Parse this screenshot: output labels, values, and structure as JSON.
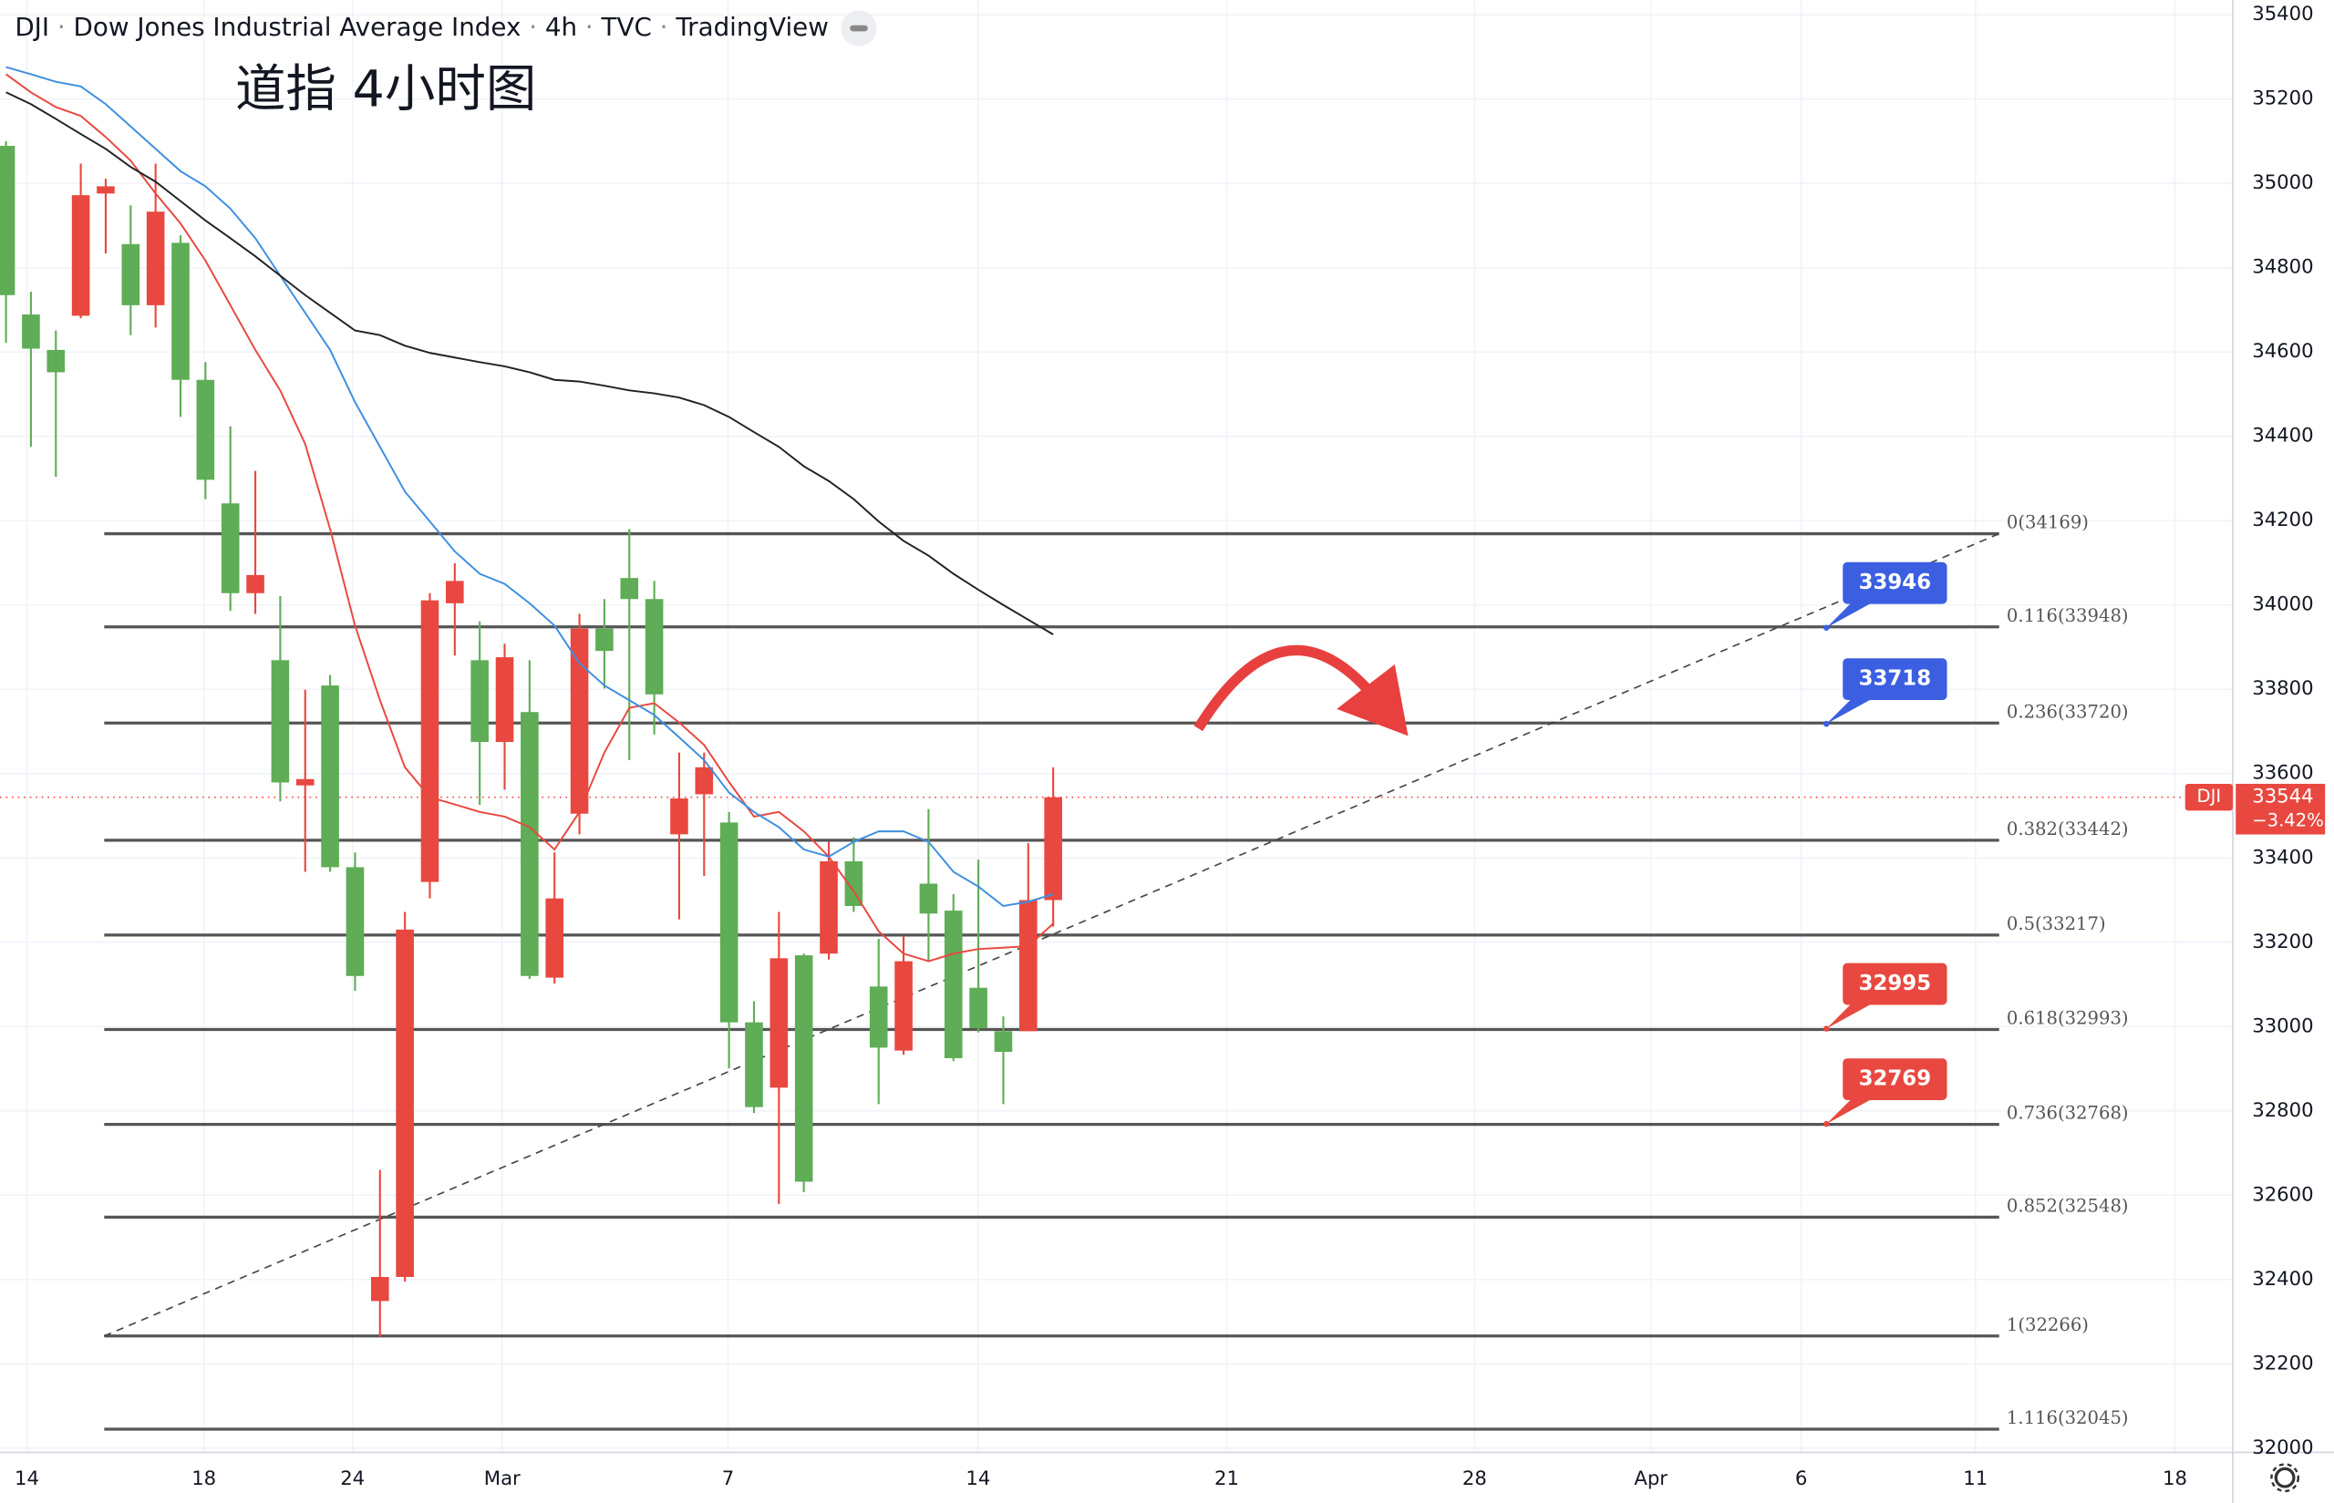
{
  "chart_data": {
    "type": "candlestick",
    "symbol": "DJI",
    "name": "Dow Jones Industrial Average Index",
    "interval": "4h",
    "exchange": "TVC",
    "source": "TradingView",
    "title": "道指 4小时图",
    "up_color": "#e8483f",
    "down_color": "#5fad56",
    "xlim": [
      -0.24,
      89.31
    ],
    "ylim": [
      31990,
      35435
    ],
    "xticks": [
      {
        "value": 0.84,
        "label": "14"
      },
      {
        "value": 7.94,
        "label": "18"
      },
      {
        "value": 13.9,
        "label": "24"
      },
      {
        "value": 19.9,
        "label": "Mar"
      },
      {
        "value": 28.96,
        "label": "7"
      },
      {
        "value": 38.99,
        "label": "14"
      },
      {
        "value": 48.96,
        "label": "21"
      },
      {
        "value": 58.9,
        "label": "28"
      },
      {
        "value": 65.97,
        "label": "Apr"
      },
      {
        "value": 72.0,
        "label": "6"
      },
      {
        "value": 78.99,
        "label": "11"
      },
      {
        "value": 86.99,
        "label": "18"
      }
    ],
    "yticks": [
      32000,
      32200,
      32400,
      32600,
      32800,
      33000,
      33200,
      33400,
      33600,
      33800,
      34000,
      34200,
      34400,
      34600,
      34800,
      35000,
      35200,
      35400
    ],
    "grid": true,
    "open": [
      35089,
      34689,
      34605,
      34686,
      34976,
      34856,
      34711,
      34859,
      34534,
      34241,
      34028,
      33869,
      33572,
      33809,
      33378,
      32349,
      32406,
      33343,
      34004,
      33869,
      33675,
      33746,
      33116,
      33505,
      33944,
      34064,
      34014,
      33456,
      33551,
      33484,
      33010,
      32855,
      33169,
      33173,
      33392,
      33095,
      32943,
      33339,
      33275,
      33092,
      32989,
      32989,
      33300
    ],
    "high": [
      35100,
      34743,
      34651,
      35047,
      35011,
      34948,
      35047,
      34877,
      34576,
      34424,
      34318,
      34021,
      33799,
      33834,
      33413,
      32660,
      33272,
      34028,
      34099,
      33961,
      33908,
      33869,
      33413,
      33979,
      34014,
      34180,
      34057,
      33650,
      33650,
      33509,
      33060,
      33272,
      33173,
      33438,
      33449,
      33208,
      33215,
      33516,
      33314,
      33396,
      33024,
      33435,
      33615
    ],
    "low": [
      34622,
      34375,
      34304,
      34680,
      34834,
      34640,
      34658,
      34446,
      34251,
      33986,
      33979,
      33534,
      33367,
      33367,
      33085,
      32264,
      32395,
      33304,
      33880,
      33526,
      33562,
      33113,
      33102,
      33456,
      33802,
      33632,
      33693,
      33254,
      33357,
      32901,
      32795,
      32579,
      32607,
      33159,
      33272,
      32816,
      32933,
      33155,
      32918,
      32986,
      32816,
      32989,
      33237
    ],
    "close": [
      34735,
      34608,
      34552,
      34972,
      34993,
      34711,
      34933,
      34534,
      34297,
      34028,
      34071,
      33579,
      33587,
      33378,
      33120,
      32406,
      33230,
      34011,
      34057,
      33675,
      33876,
      33120,
      33304,
      33944,
      33891,
      34014,
      33788,
      33541,
      33615,
      33010,
      32809,
      33162,
      32632,
      33392,
      33286,
      32950,
      33155,
      33268,
      32925,
      32996,
      32940,
      33300,
      33544
    ],
    "moving_averages": [
      {
        "color": "#e8483f",
        "values": [
          35259,
          35216,
          35181,
          35160,
          35110,
          35054,
          34976,
          34905,
          34817,
          34711,
          34605,
          34509,
          34382,
          34180,
          33951,
          33774,
          33615,
          33544,
          33527,
          33509,
          33498,
          33473,
          33420,
          33509,
          33650,
          33756,
          33767,
          33721,
          33668,
          33580,
          33498,
          33509,
          33463,
          33403,
          33321,
          33226,
          33173,
          33155,
          33173,
          33184,
          33187,
          33191,
          33244
        ]
      },
      {
        "color": "#3d8fe0",
        "values": [
          35276,
          35259,
          35241,
          35230,
          35188,
          35135,
          35082,
          35029,
          34993,
          34940,
          34870,
          34781,
          34693,
          34605,
          34481,
          34375,
          34269,
          34198,
          34127,
          34074,
          34050,
          34004,
          33951,
          33862,
          33809,
          33774,
          33739,
          33686,
          33632,
          33555,
          33509,
          33473,
          33420,
          33403,
          33438,
          33463,
          33463,
          33438,
          33367,
          33332,
          33286,
          33296,
          33314
        ]
      },
      {
        "color": "#222222",
        "values": [
          35216,
          35188,
          35153,
          35117,
          35082,
          35039,
          35004,
          34958,
          34912,
          34870,
          34827,
          34781,
          34735,
          34693,
          34651,
          34640,
          34615,
          34598,
          34587,
          34576,
          34566,
          34552,
          34534,
          34530,
          34520,
          34509,
          34502,
          34492,
          34474,
          34446,
          34410,
          34375,
          34329,
          34294,
          34251,
          34198,
          34152,
          34117,
          34074,
          34036,
          34000,
          33965,
          33930
        ]
      }
    ],
    "fib_x": [
      3.94,
      79.94
    ],
    "fib_levels": {
      "values": [
        34169,
        33948,
        33720,
        33442,
        33217,
        32993,
        32768,
        32548,
        32266,
        32045
      ],
      "value_labels": [
        "0(34169)",
        "0.116(33948)",
        "0.236(33720)",
        "0.382(33442)",
        "0.5(33217)",
        "0.618(32993)",
        "0.736(32768)",
        "0.852(32548)",
        "1(32266)",
        "1.116(32045)"
      ]
    },
    "trendline": {
      "x": [
        3.94,
        79.94
      ],
      "y": [
        32266,
        34169
      ]
    },
    "callouts": [
      {
        "value": 33946,
        "color": "#3b5fe0"
      },
      {
        "value": 33718,
        "color": "#3b5fe0"
      },
      {
        "value": 32995,
        "color": "#e8483f"
      },
      {
        "value": 32769,
        "color": "#e8483f"
      }
    ],
    "last_price": {
      "value": 33544,
      "change": "−3.42%",
      "color": "#e8483f"
    }
  }
}
